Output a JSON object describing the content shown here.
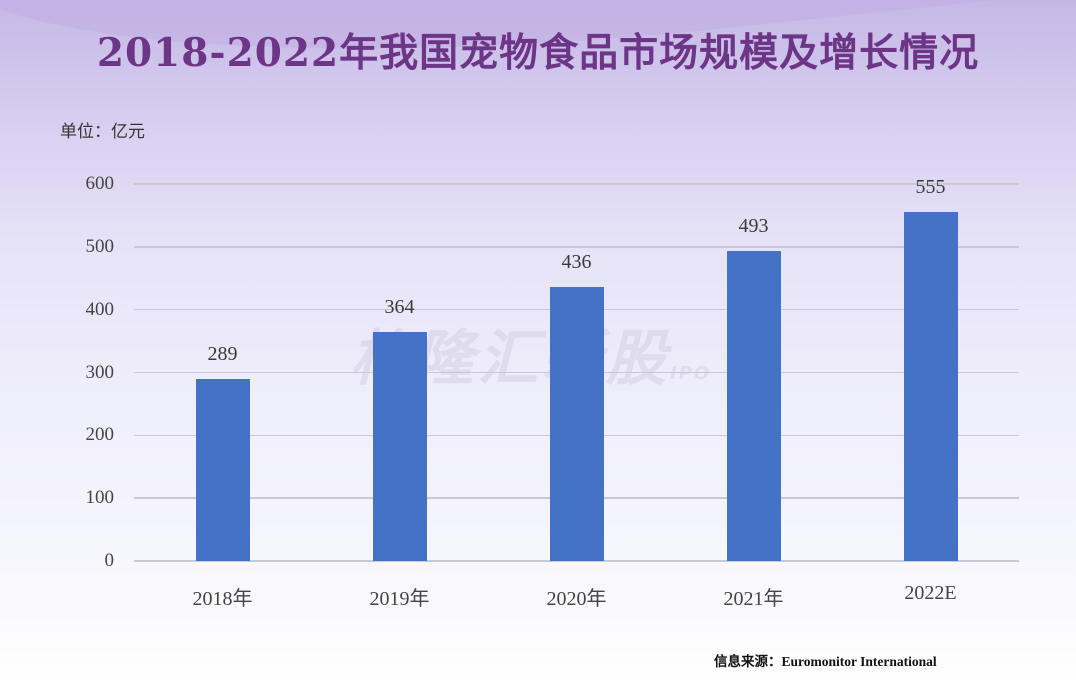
{
  "title": "2018-2022年我国宠物食品市场规模及增长情况",
  "unit_label": "单位：亿元",
  "source": "信息来源：Euromonitor International",
  "watermark": {
    "main": "格隆汇新股",
    "sub": "IPO"
  },
  "colors": {
    "bar": "#4472c4",
    "title": "#6c3585",
    "grid": "#c9c7d3"
  },
  "y_ticks": [
    "0",
    "100",
    "200",
    "300",
    "400",
    "500",
    "600"
  ],
  "x_ticks": [
    "2018年",
    "2019年",
    "2020年",
    "2021年",
    "2022E"
  ],
  "bar_labels": [
    "289",
    "364",
    "436",
    "493",
    "555"
  ],
  "chart_data": {
    "type": "bar",
    "title": "2018-2022年我国宠物食品市场规模及增长情况",
    "categories": [
      "2018年",
      "2019年",
      "2020年",
      "2021年",
      "2022E"
    ],
    "values": [
      289,
      364,
      436,
      493,
      555
    ],
    "xlabel": "",
    "ylabel": "单位：亿元",
    "ylim": [
      0,
      600
    ],
    "yticks": [
      0,
      100,
      200,
      300,
      400,
      500,
      600
    ],
    "grid": true,
    "legend": "none",
    "data_labels": true,
    "source": "信息来源：Euromonitor International"
  }
}
